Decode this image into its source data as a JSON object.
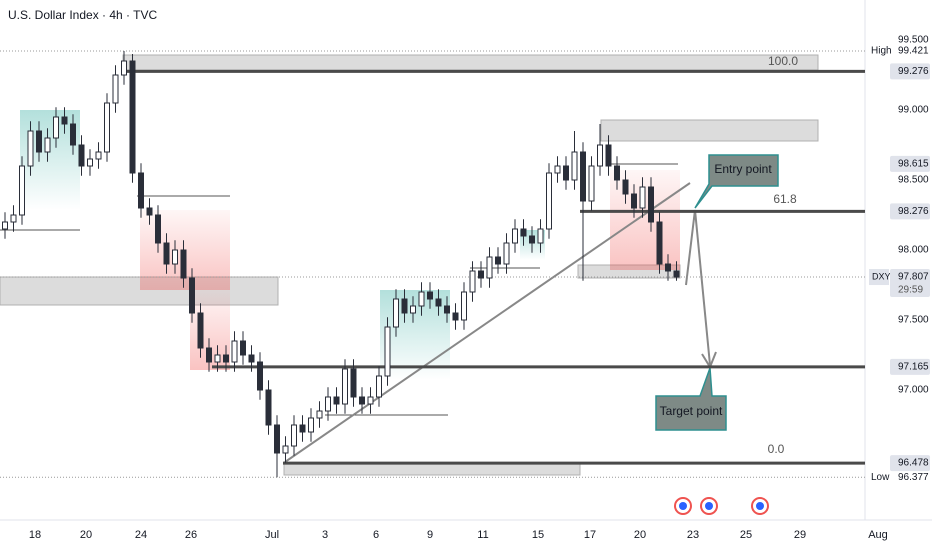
{
  "header": {
    "title": "U.S. Dollar Index · 4h · TVC"
  },
  "chart_data": {
    "type": "candlestick",
    "ylim": [
      96.1,
      99.7
    ],
    "yticks": [
      {
        "value": 97,
        "label": "97.000"
      },
      {
        "value": 97.5,
        "label": "97.500"
      },
      {
        "value": 98,
        "label": "98.000"
      },
      {
        "value": 98.5,
        "label": "98.500"
      },
      {
        "value": 99,
        "label": "99.000"
      },
      {
        "value": 99.5,
        "label": "99.500"
      }
    ],
    "grid": false,
    "x_labels": [
      "18",
      "20",
      "24",
      "26",
      "Jul",
      "3",
      "6",
      "9",
      "11",
      "15",
      "17",
      "20",
      "23",
      "25",
      "29",
      "Aug"
    ],
    "ohlc": [
      [
        98.15,
        98.27,
        98.08,
        98.2
      ],
      [
        98.2,
        98.32,
        98.13,
        98.25
      ],
      [
        98.25,
        98.67,
        98.18,
        98.6
      ],
      [
        98.6,
        98.92,
        98.53,
        98.85
      ],
      [
        98.85,
        98.92,
        98.63,
        98.7
      ],
      [
        98.7,
        98.87,
        98.63,
        98.8
      ],
      [
        98.8,
        99.02,
        98.73,
        98.95
      ],
      [
        98.95,
        99.02,
        98.83,
        98.9
      ],
      [
        98.9,
        98.97,
        98.68,
        98.75
      ],
      [
        98.75,
        98.82,
        98.53,
        98.6
      ],
      [
        98.6,
        98.72,
        98.53,
        98.65
      ],
      [
        98.65,
        98.77,
        98.58,
        98.7
      ],
      [
        98.7,
        99.12,
        98.63,
        99.05
      ],
      [
        99.05,
        99.32,
        98.98,
        99.25
      ],
      [
        99.25,
        99.421,
        99.18,
        99.35
      ],
      [
        99.35,
        99.4,
        98.48,
        98.55
      ],
      [
        98.55,
        98.62,
        98.23,
        98.3
      ],
      [
        98.3,
        98.37,
        98.18,
        98.25
      ],
      [
        98.25,
        98.32,
        97.98,
        98.05
      ],
      [
        98.05,
        98.12,
        97.83,
        97.9
      ],
      [
        97.9,
        98.07,
        97.83,
        98
      ],
      [
        98,
        98.07,
        97.73,
        97.8
      ],
      [
        97.8,
        97.87,
        97.48,
        97.55
      ],
      [
        97.55,
        97.62,
        97.23,
        97.3
      ],
      [
        97.3,
        97.37,
        97.13,
        97.2
      ],
      [
        97.2,
        97.32,
        97.13,
        97.25
      ],
      [
        97.25,
        97.32,
        97.13,
        97.2
      ],
      [
        97.2,
        97.42,
        97.13,
        97.35
      ],
      [
        97.35,
        97.42,
        97.18,
        97.25
      ],
      [
        97.25,
        97.32,
        97.13,
        97.2
      ],
      [
        97.2,
        97.27,
        96.93,
        97
      ],
      [
        97,
        97.07,
        96.68,
        96.75
      ],
      [
        96.75,
        96.82,
        96.377,
        96.55
      ],
      [
        96.55,
        96.67,
        96.48,
        96.6
      ],
      [
        96.6,
        96.82,
        96.53,
        96.75
      ],
      [
        96.75,
        96.82,
        96.63,
        96.7
      ],
      [
        96.7,
        96.87,
        96.63,
        96.8
      ],
      [
        96.8,
        96.92,
        96.73,
        96.85
      ],
      [
        96.85,
        97.02,
        96.78,
        96.95
      ],
      [
        96.95,
        97.02,
        96.83,
        96.9
      ],
      [
        96.9,
        97.22,
        96.83,
        97.15
      ],
      [
        97.15,
        97.22,
        96.88,
        96.95
      ],
      [
        96.95,
        97.02,
        96.83,
        96.9
      ],
      [
        96.9,
        97.02,
        96.83,
        96.95
      ],
      [
        96.95,
        97.17,
        96.88,
        97.1
      ],
      [
        97.1,
        97.52,
        97.03,
        97.45
      ],
      [
        97.45,
        97.72,
        97.38,
        97.65
      ],
      [
        97.65,
        97.72,
        97.48,
        97.55
      ],
      [
        97.55,
        97.67,
        97.48,
        97.6
      ],
      [
        97.6,
        97.77,
        97.53,
        97.7
      ],
      [
        97.7,
        97.77,
        97.58,
        97.65
      ],
      [
        97.65,
        97.72,
        97.53,
        97.6
      ],
      [
        97.6,
        97.67,
        97.48,
        97.55
      ],
      [
        97.55,
        97.62,
        97.43,
        97.5
      ],
      [
        97.5,
        97.77,
        97.43,
        97.7
      ],
      [
        97.7,
        97.92,
        97.63,
        97.85
      ],
      [
        97.85,
        97.92,
        97.73,
        97.8
      ],
      [
        97.8,
        98.02,
        97.73,
        97.95
      ],
      [
        97.95,
        98.02,
        97.83,
        97.9
      ],
      [
        97.9,
        98.12,
        97.83,
        98.05
      ],
      [
        98.05,
        98.22,
        97.98,
        98.15
      ],
      [
        98.15,
        98.22,
        98.03,
        98.1
      ],
      [
        98.1,
        98.17,
        97.98,
        98.05
      ],
      [
        98.05,
        98.22,
        97.98,
        98.15
      ],
      [
        98.15,
        98.62,
        98.08,
        98.55
      ],
      [
        98.55,
        98.67,
        98.48,
        98.6
      ],
      [
        98.6,
        98.67,
        98.43,
        98.5
      ],
      [
        98.5,
        98.85,
        98.43,
        98.7
      ],
      [
        98.7,
        98.77,
        97.78,
        98.35
      ],
      [
        98.35,
        98.67,
        98.28,
        98.6
      ],
      [
        98.6,
        98.9,
        98.53,
        98.75
      ],
      [
        98.75,
        98.82,
        98.53,
        98.6
      ],
      [
        98.6,
        98.67,
        98.43,
        98.5
      ],
      [
        98.5,
        98.57,
        98.33,
        98.4
      ],
      [
        98.4,
        98.47,
        98.23,
        98.3
      ],
      [
        98.3,
        98.52,
        98.23,
        98.45
      ],
      [
        98.45,
        98.52,
        98.13,
        98.2
      ],
      [
        98.2,
        98.27,
        97.83,
        97.9
      ],
      [
        97.9,
        97.97,
        97.78,
        97.85
      ],
      [
        97.85,
        97.92,
        97.78,
        97.807
      ]
    ],
    "levels": [
      99.276,
      98.615,
      98.276,
      97.165,
      96.478
    ],
    "high": {
      "label": "High",
      "value": 99.421
    },
    "low": {
      "label": "Low",
      "value": 96.377
    },
    "current": {
      "name": "DXY",
      "value": 97.807,
      "countdown": "29:59"
    },
    "fib_labels": [
      {
        "value": 100,
        "label": "100.0"
      },
      {
        "value": 61.8,
        "label": "61.8"
      },
      {
        "value": 0,
        "label": "0.0"
      }
    ],
    "annotations": [
      "Entry point",
      "Target point"
    ]
  }
}
